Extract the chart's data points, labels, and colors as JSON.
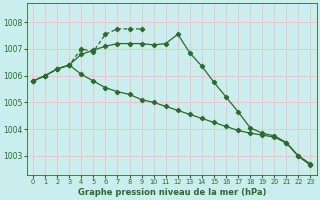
{
  "background_color": "#caeeed",
  "grid_color": "#f0c0c0",
  "line_color": "#2d6a2d",
  "title": "Graphe pression niveau de la mer (hPa)",
  "xlim": [
    -0.5,
    23.5
  ],
  "ylim": [
    1002.3,
    1008.7
  ],
  "yticks": [
    1003,
    1004,
    1005,
    1006,
    1007,
    1008
  ],
  "xticks": [
    0,
    1,
    2,
    3,
    4,
    5,
    6,
    7,
    8,
    9,
    10,
    11,
    12,
    13,
    14,
    15,
    16,
    17,
    18,
    19,
    20,
    21,
    22,
    23
  ],
  "series1_x": [
    0,
    1,
    2,
    3,
    4,
    5,
    6,
    7,
    8,
    9,
    10,
    11,
    12,
    13,
    14,
    15,
    16,
    17,
    18,
    19,
    20,
    21,
    22,
    23
  ],
  "series1_y": [
    1005.8,
    1006.0,
    1006.25,
    1006.4,
    1006.05,
    1005.8,
    1005.55,
    1005.4,
    1005.3,
    1005.1,
    1005.0,
    1004.85,
    1004.7,
    1004.55,
    1004.4,
    1004.25,
    1004.1,
    1003.95,
    1003.85,
    1003.78,
    1003.7,
    1003.48,
    1002.98,
    1002.65
  ],
  "series2_x": [
    0,
    1,
    2,
    3,
    4,
    5,
    6,
    7,
    8,
    9,
    10,
    11,
    12,
    13,
    14,
    15,
    16,
    17,
    18,
    19,
    20,
    21,
    22,
    23
  ],
  "series2_y": [
    1005.8,
    1006.0,
    1006.25,
    1006.4,
    1006.8,
    1006.95,
    1007.1,
    1007.2,
    1007.2,
    1007.2,
    1007.15,
    1007.2,
    1007.55,
    1006.85,
    1006.35,
    1005.75,
    1005.2,
    1004.65,
    1004.05,
    1003.85,
    1003.75,
    1003.5,
    1003.0,
    1002.7
  ],
  "series3_x": [
    0,
    1,
    2,
    3,
    4,
    5,
    6,
    7,
    8,
    9,
    10,
    11,
    12,
    13,
    14,
    15,
    16,
    17,
    18,
    19,
    20,
    21,
    22,
    23
  ],
  "series3_y": [
    1005.8,
    1006.0,
    1006.25,
    1006.4,
    1007.0,
    1006.9,
    1007.55,
    1007.75,
    1007.75,
    1007.75,
    1007.15,
    1007.3,
    1007.55,
    1006.85,
    1006.35,
    1005.75,
    1005.2,
    1004.65,
    1004.05,
    1003.85,
    1003.75,
    1003.5,
    1003.0,
    1002.7
  ]
}
